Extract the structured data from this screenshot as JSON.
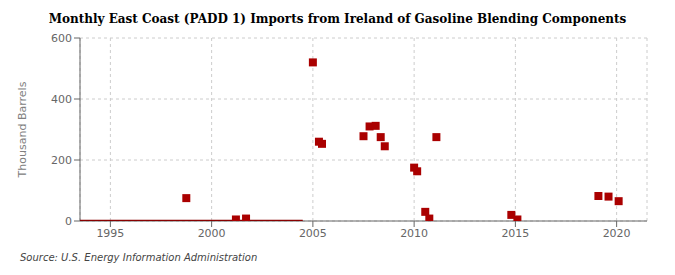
{
  "chart_data": {
    "type": "scatter",
    "title": "Monthly East Coast (PADD 1) Imports from Ireland of Gasoline Blending Components",
    "ylabel": "Thousand Barrels",
    "annotations": [
      "Source: U.S. Energy Information Administration"
    ],
    "xlim": [
      1993.5,
      2021.5
    ],
    "xticks": [
      1995,
      2000,
      2005,
      2010,
      2015,
      2020
    ],
    "ylim": [
      0,
      600
    ],
    "yticks": [
      0,
      200,
      400,
      600
    ],
    "grid": true,
    "series": [
      {
        "type": "line",
        "color": "#880000",
        "line_style": "solid",
        "x": [
          1993.5,
          2004.5
        ],
        "values": [
          0,
          0
        ]
      },
      {
        "type": "scatter",
        "marker": "square",
        "color": "#aa0000",
        "x": [
          1998.75,
          2001.2,
          2001.7,
          2005.0,
          2005.3,
          2005.45,
          2007.5,
          2007.8,
          2008.1,
          2008.35,
          2008.55,
          2010.0,
          2010.15,
          2010.55,
          2010.75,
          2011.1,
          2014.8,
          2015.1,
          2019.1,
          2019.6,
          2020.1
        ],
        "values": [
          75,
          5,
          8,
          520,
          260,
          253,
          278,
          310,
          312,
          275,
          245,
          175,
          163,
          30,
          8,
          275,
          20,
          5,
          82,
          80,
          65
        ]
      }
    ]
  }
}
